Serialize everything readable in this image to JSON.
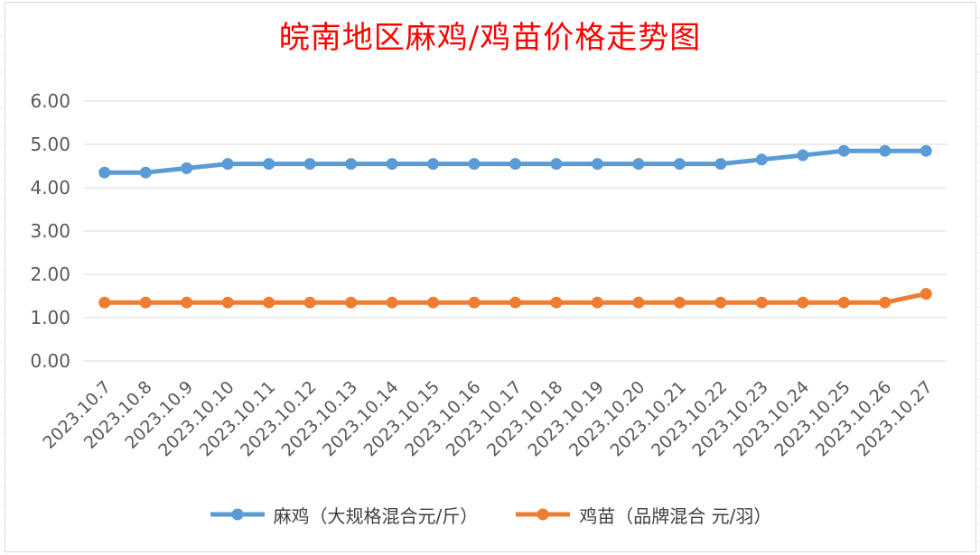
{
  "chart_data": {
    "type": "line",
    "title": "皖南地区麻鸡/鸡苗价格走势图",
    "title_color": "#ff0000",
    "categories": [
      "2023.10.7",
      "2023.10.8",
      "2023.10.9",
      "2023.10.10",
      "2023.10.11",
      "2023.10.12",
      "2023.10.13",
      "2023.10.14",
      "2023.10.15",
      "2023.10.16",
      "2023.10.17",
      "2023.10.18",
      "2023.10.19",
      "2023.10.20",
      "2023.10.21",
      "2023.10.22",
      "2023.10.23",
      "2023.10.24",
      "2023.10.25",
      "2023.10.26",
      "2023.10.27"
    ],
    "y_ticks": [
      "0.00",
      "1.00",
      "2.00",
      "3.00",
      "4.00",
      "5.00",
      "6.00"
    ],
    "ylim": [
      0,
      6
    ],
    "grid": true,
    "legend_position": "bottom",
    "series": [
      {
        "name": "麻鸡（大规格混合元/斤）",
        "color": "#5b9bd5",
        "values": [
          4.35,
          4.35,
          4.45,
          4.55,
          4.55,
          4.55,
          4.55,
          4.55,
          4.55,
          4.55,
          4.55,
          4.55,
          4.55,
          4.55,
          4.55,
          4.55,
          4.65,
          4.75,
          4.85,
          4.85,
          4.85
        ]
      },
      {
        "name": "鸡苗（品牌混合 元/羽）",
        "color": "#ed7d31",
        "values": [
          1.35,
          1.35,
          1.35,
          1.35,
          1.35,
          1.35,
          1.35,
          1.35,
          1.35,
          1.35,
          1.35,
          1.35,
          1.35,
          1.35,
          1.35,
          1.35,
          1.35,
          1.35,
          1.35,
          1.35,
          1.55
        ]
      }
    ]
  }
}
